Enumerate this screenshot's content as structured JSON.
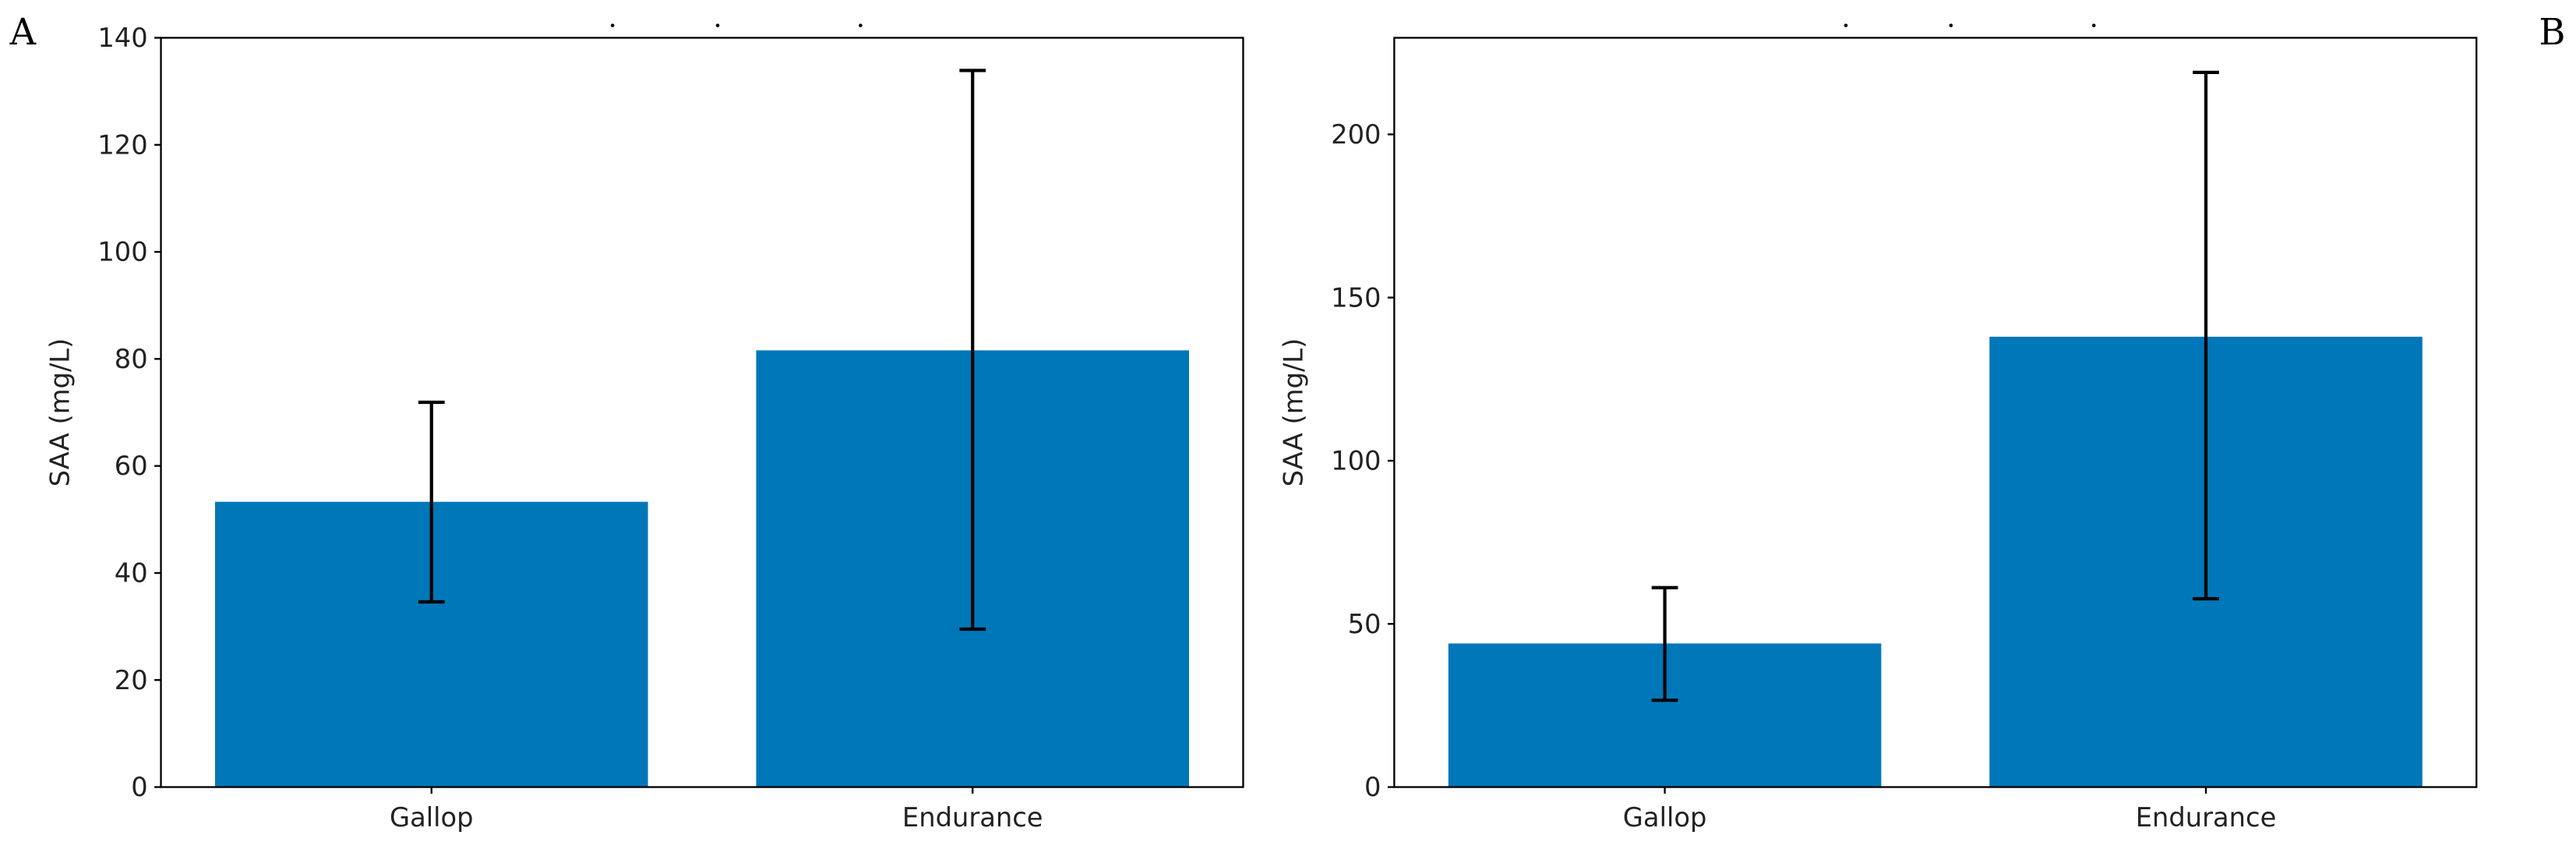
{
  "colors": {
    "bar": "#0077b8",
    "axis": "#000000",
    "errorbar": "#000000"
  },
  "chart_data": [
    {
      "panel_label": "A",
      "type": "bar",
      "title": "",
      "xlabel": "",
      "ylabel": "SAA (mg/L)",
      "categories": [
        "Gallop",
        "Endurance"
      ],
      "values": [
        53.3,
        81.6
      ],
      "error_low": [
        34.6,
        29.5
      ],
      "error_high": [
        71.9,
        133.9
      ],
      "ylim": [
        0,
        140
      ],
      "yticks": [
        0,
        20,
        40,
        60,
        80,
        100,
        120,
        140
      ],
      "grid": false,
      "legend": "none"
    },
    {
      "panel_label": "B",
      "type": "bar",
      "title": "",
      "xlabel": "",
      "ylabel": "SAA (mg/L)",
      "categories": [
        "Gallop",
        "Endurance"
      ],
      "values": [
        44.0,
        138.0
      ],
      "error_low": [
        26.6,
        57.7
      ],
      "error_high": [
        61.1,
        219.0
      ],
      "ylim": [
        0,
        229.6
      ],
      "yticks": [
        0,
        50,
        100,
        150,
        200
      ],
      "grid": false,
      "legend": "none"
    }
  ]
}
